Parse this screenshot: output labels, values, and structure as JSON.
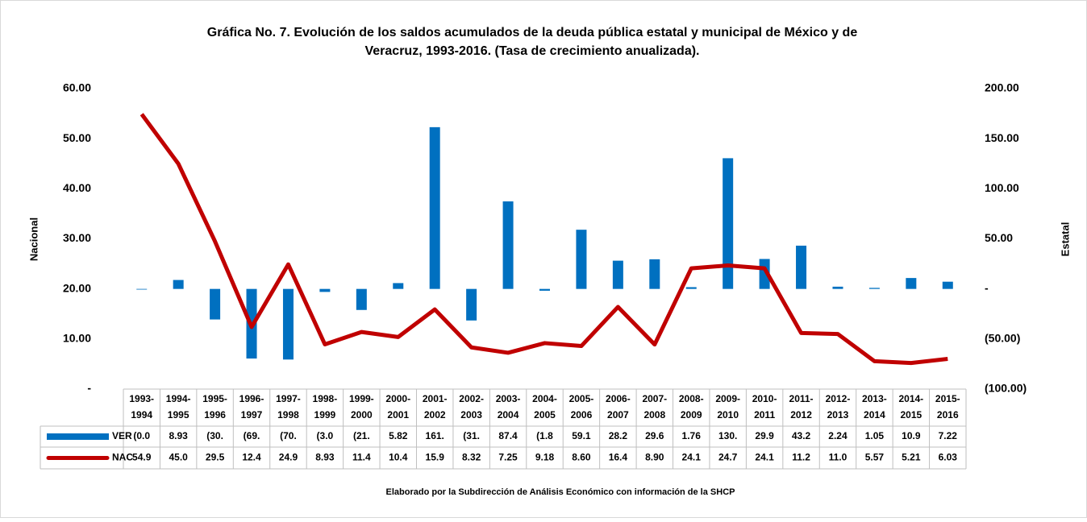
{
  "chart_data": {
    "type": "bar-line-table",
    "title": [
      "Gráfica No. 7. Evolución de los saldos acumulados de la deuda pública estatal y municipal de México y de",
      "Veracruz, 1993-2016. (Tasa de crecimiento anualizada)."
    ],
    "ylabel": "Nacional",
    "y2label": "Estatal",
    "footer": "Elaborado por la Subdirección de Análisis Económico con información de la SHCP",
    "categories": [
      "1993-1994",
      "1994-1995",
      "1995-1996",
      "1996-1997",
      "1997-1998",
      "1998-1999",
      "1999-2000",
      "2000-2001",
      "2001-2002",
      "2002-2003",
      "2003-2004",
      "2004-2005",
      "2005-2006",
      "2006-2007",
      "2007-2008",
      "2008-2009",
      "2009-2010",
      "2010-2011",
      "2011-2012",
      "2012-2013",
      "2013-2014",
      "2014-2015",
      "2015-2016"
    ],
    "ylim": [
      0,
      60
    ],
    "yticks": [
      {
        "value": 0,
        "label": "-"
      },
      {
        "value": 10,
        "label": "10.00"
      },
      {
        "value": 20,
        "label": "20.00"
      },
      {
        "value": 30,
        "label": "30.00"
      },
      {
        "value": 40,
        "label": "40.00"
      },
      {
        "value": 50,
        "label": "50.00"
      },
      {
        "value": 60,
        "label": "60.00"
      }
    ],
    "y2lim": [
      -100,
      200
    ],
    "y2ticks": [
      {
        "value": -100,
        "label": "(100.00)"
      },
      {
        "value": -50,
        "label": "(50.00)"
      },
      {
        "value": 0,
        "label": "-"
      },
      {
        "value": 50,
        "label": "50.00"
      },
      {
        "value": 100,
        "label": "100.00"
      },
      {
        "value": 150,
        "label": "150.00"
      },
      {
        "value": 200,
        "label": "200.00"
      }
    ],
    "series": [
      {
        "name": "VER",
        "type": "bar",
        "axis": "y2",
        "color": "#0070c0",
        "values": [
          -0.05,
          8.93,
          -30.5,
          -69.5,
          -70.5,
          -3.0,
          -21.0,
          5.82,
          161.5,
          -31.5,
          87.4,
          -1.8,
          59.1,
          28.2,
          29.6,
          1.76,
          130.5,
          29.9,
          43.2,
          2.24,
          1.05,
          10.9,
          7.22
        ],
        "value_labels": [
          "(0.0",
          "8.93",
          "(30.",
          "(69.",
          "(70.",
          "(3.0",
          "(21.",
          "5.82",
          "161.",
          "(31.",
          "87.4",
          "(1.8",
          "59.1",
          "28.2",
          "29.6",
          "1.76",
          "130.",
          "29.9",
          "43.2",
          "2.24",
          "1.05",
          "10.9",
          "7.22"
        ]
      },
      {
        "name": "NAC",
        "type": "line",
        "axis": "y",
        "color": "#c00000",
        "values": [
          54.9,
          45.0,
          29.5,
          12.4,
          24.9,
          8.93,
          11.4,
          10.4,
          15.9,
          8.32,
          7.25,
          9.18,
          8.6,
          16.4,
          8.9,
          24.1,
          24.7,
          24.1,
          11.2,
          11.0,
          5.57,
          5.21,
          6.03
        ],
        "value_labels": [
          "54.9",
          "45.0",
          "29.5",
          "12.4",
          "24.9",
          "8.93",
          "11.4",
          "10.4",
          "15.9",
          "8.32",
          "7.25",
          "9.18",
          "8.60",
          "16.4",
          "8.90",
          "24.1",
          "24.7",
          "24.1",
          "11.2",
          "11.0",
          "5.57",
          "5.21",
          "6.03"
        ]
      }
    ]
  }
}
